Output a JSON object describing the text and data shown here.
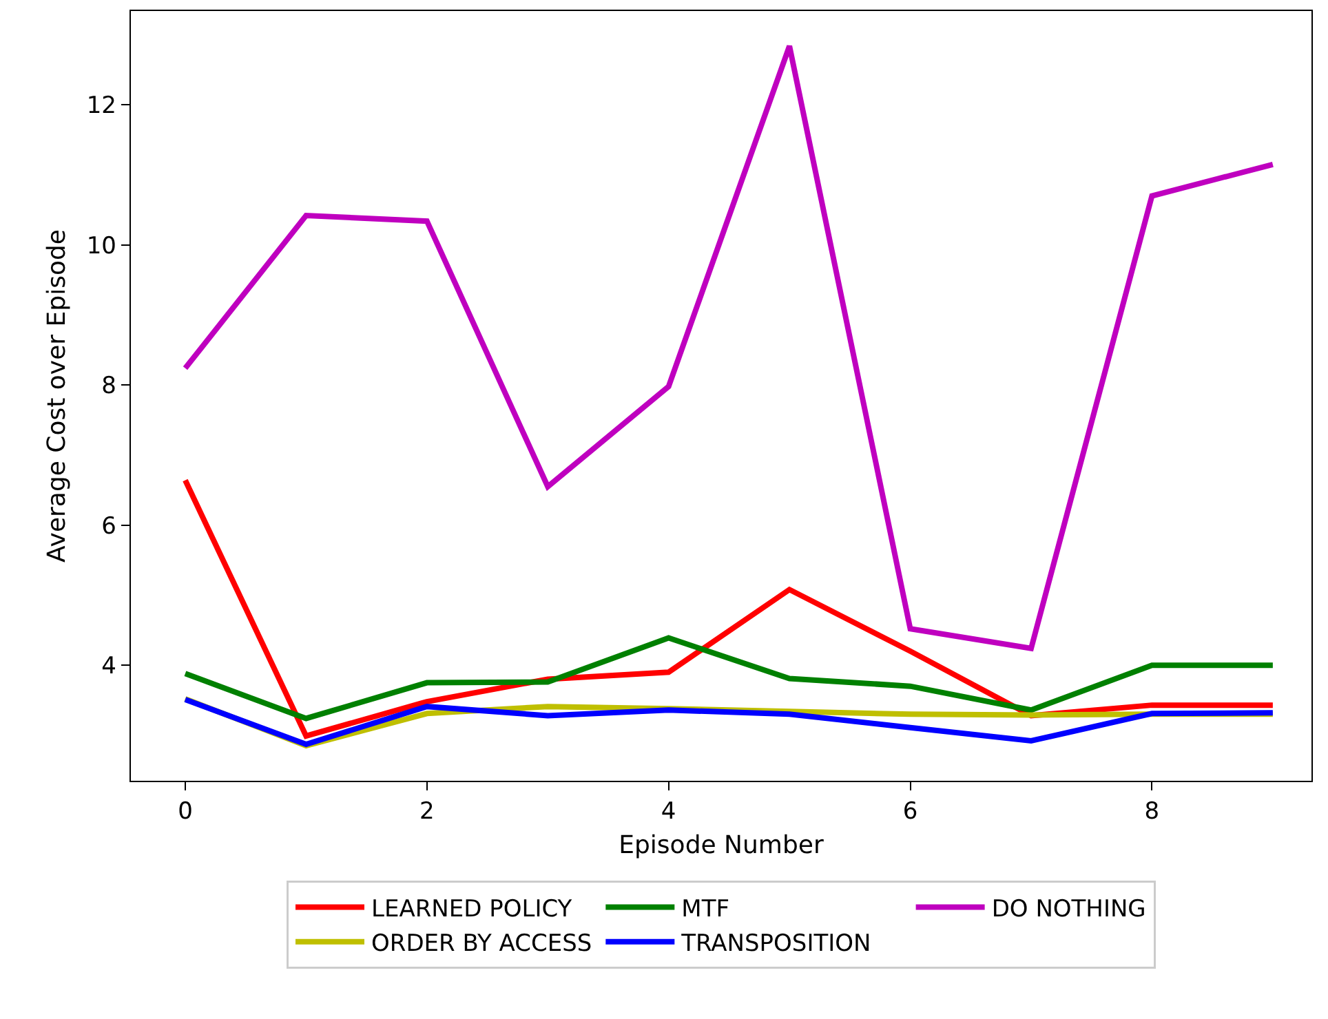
{
  "chart_data": {
    "type": "line",
    "xlabel": "Episode Number",
    "ylabel": "Average Cost over Episode",
    "x": [
      0,
      1,
      2,
      3,
      4,
      5,
      6,
      7,
      8,
      9
    ],
    "series": [
      {
        "name": "LEARNED POLICY",
        "color": "#ff0000",
        "values": [
          6.64,
          2.99,
          3.48,
          3.8,
          3.9,
          5.08,
          4.2,
          3.28,
          3.43,
          3.43
        ]
      },
      {
        "name": "MTF",
        "color": "#008000",
        "values": [
          3.88,
          3.24,
          3.75,
          3.76,
          4.39,
          3.81,
          3.7,
          3.36,
          4.0,
          4.0
        ]
      },
      {
        "name": "DO NOTHING",
        "color": "#bf00bf",
        "values": [
          8.24,
          10.42,
          10.34,
          6.55,
          7.98,
          12.84,
          4.52,
          4.24,
          10.7,
          11.15
        ]
      },
      {
        "name": "ORDER BY ACCESS",
        "color": "#bfbf00",
        "values": [
          3.52,
          2.85,
          3.31,
          3.41,
          3.38,
          3.34,
          3.3,
          3.29,
          3.3,
          3.3
        ]
      },
      {
        "name": "TRANSPOSITION",
        "color": "#0000ff",
        "values": [
          3.51,
          2.87,
          3.41,
          3.28,
          3.36,
          3.3,
          3.11,
          2.92,
          3.31,
          3.32
        ]
      }
    ],
    "xlim": [
      -0.45,
      9.32
    ],
    "ylim": [
      2.35,
      13.34
    ],
    "xticks": [
      0,
      2,
      4,
      6,
      8
    ],
    "yticks": [
      4,
      6,
      8,
      10,
      12
    ],
    "legend": "bottom",
    "marker": "none",
    "line_style": "solid"
  }
}
